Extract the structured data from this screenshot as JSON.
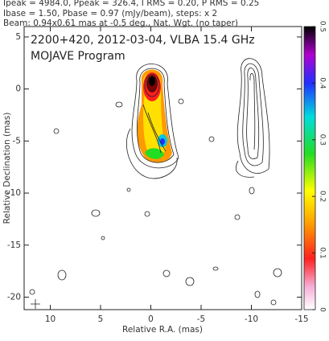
{
  "header": {
    "lines": [
      "Ipeak = 4984.0, Ppeak = 326.4, I RMS = 0.20, P RMS = 0.25",
      "Ibase = 1.50, Pbase = 0.97 (mJy/beam), steps: x 2",
      "Beam: 0.94x0.61 mas at -0.5 deg., Nat. Wgt. (no taper)"
    ]
  },
  "chart_data": {
    "type": "contour-map",
    "title": "2200+420, 2012-03-04, VLBA 15.4 GHz",
    "subtitle": "MOJAVE Program",
    "x_label": "Relative R.A. (mas)",
    "y_label": "Relative Declination (mas)",
    "xlim": [
      12.6,
      -15
    ],
    "ylim": [
      -21.2,
      6
    ],
    "xticks": [
      10,
      5,
      0,
      -5,
      -10,
      -15
    ],
    "yticks": [
      5,
      0,
      -5,
      -10,
      -15,
      -20
    ],
    "colorbar": {
      "lim": [
        0,
        0.5
      ],
      "ticks": [
        0,
        0.1,
        0.2,
        0.3,
        0.4,
        0.5
      ]
    }
  }
}
